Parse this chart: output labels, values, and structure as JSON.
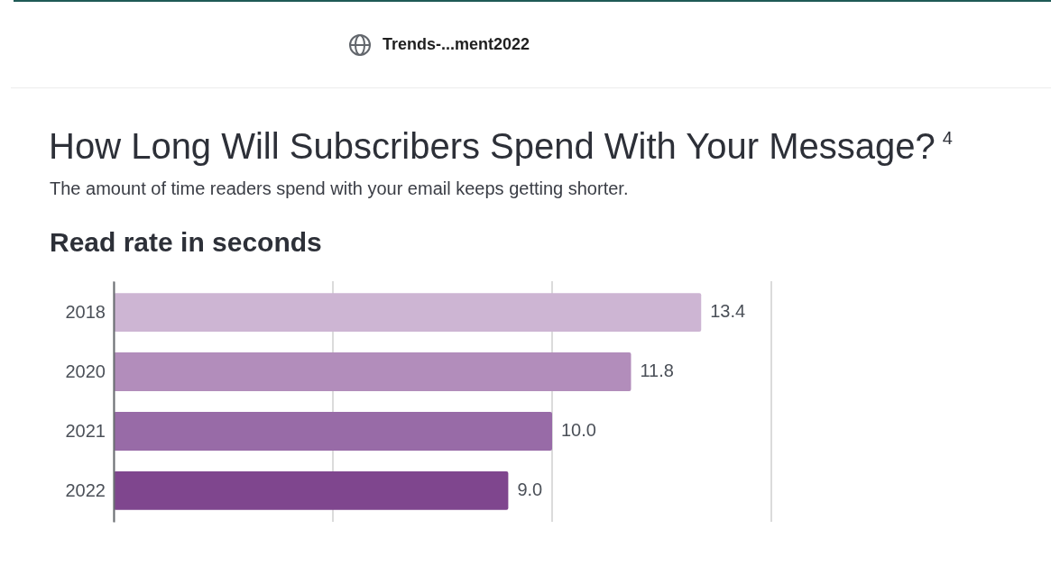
{
  "chart_data": {
    "type": "bar",
    "orientation": "horizontal",
    "title": "How Long Will Subscribers Spend With Your Message?$^{4}$",
    "subtitle": "The amount of time readers spend with your email keeps getting shorter.",
    "xlabel": "Read rate in seconds",
    "annotations": [
      "Trends-...ment2022"
    ],
    "categories": [
      "2018",
      "2020",
      "2021",
      "2022"
    ],
    "values": [
      13.4,
      11.8,
      10.0,
      9.0
    ],
    "colors": [
      "#cdb5d3",
      "#b28dbb",
      "#986ba7",
      "#7f468e"
    ],
    "value_labels": [
      "13.4",
      "11.8",
      "10.0",
      "9.0"
    ],
    "xlim": [
      0,
      15
    ],
    "xticks": [
      {
        "value": 0,
        "label": null
      },
      {
        "value": 5,
        "label": null
      },
      {
        "value": 10,
        "label": null
      },
      {
        "value": 15,
        "label": null
      }
    ],
    "grid": "x",
    "tick_labels": "y"
  }
}
